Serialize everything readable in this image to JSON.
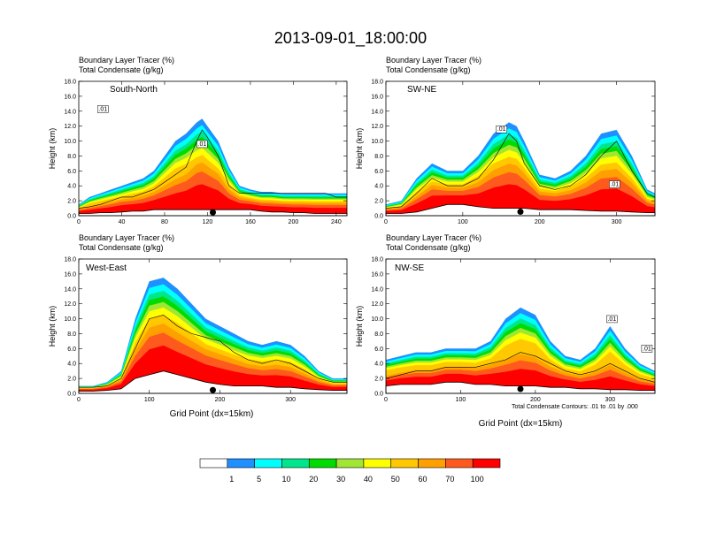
{
  "title": "2013-09-01_18:00:00",
  "panel_header": {
    "line1": "Boundary Layer Tracer    (%)",
    "line2": "Total Condensate    (g/kg)"
  },
  "footnote": "Total Condensate Contours: .01 to .01 by .000",
  "x_axis_title": "Grid Point (dx=15km)",
  "colors": {
    "bins": [
      "#ffffff",
      "#1e90ff",
      "#00ffff",
      "#00e68c",
      "#00dc00",
      "#a0e632",
      "#ffff00",
      "#ffc800",
      "#ffa000",
      "#ff5a1e",
      "#ff0000"
    ]
  },
  "colorbar_labels": [
    "1",
    "5",
    "10",
    "20",
    "30",
    "40",
    "50",
    "60",
    "70",
    "100"
  ],
  "chart_data": [
    {
      "type": "heatmap",
      "name": "South-North",
      "xlabel": "",
      "ylabel": "Height (km)",
      "xlim": [
        0,
        250
      ],
      "ylim": [
        0,
        18
      ],
      "x_ticks": [
        "0",
        "40",
        "80",
        "120",
        "160",
        "200",
        "240"
      ],
      "y_ticks": [
        "0.0",
        "2.0",
        "4.0",
        "6.0",
        "8.0",
        "10.0",
        "12.0",
        "14.0",
        "16.0",
        "18.0"
      ],
      "contour_labels": [
        ".01",
        ".01"
      ],
      "profile": {
        "x": [
          0,
          10,
          20,
          30,
          40,
          50,
          60,
          70,
          80,
          90,
          100,
          110,
          115,
          120,
          130,
          140,
          150,
          160,
          170,
          180,
          190,
          200,
          210,
          220,
          230,
          240,
          250
        ],
        "pbl_top": [
          1.0,
          1.2,
          1.5,
          2.0,
          2.5,
          2.5,
          3.0,
          3.5,
          4.5,
          5.5,
          6.5,
          10.0,
          11.5,
          10.5,
          8.0,
          4.0,
          3.0,
          3.0,
          3.0,
          3.0,
          3.0,
          3.0,
          3.0,
          3.0,
          3.0,
          2.5,
          2.5
        ],
        "cloud_top": [
          1.5,
          2.5,
          3.0,
          3.5,
          4.0,
          4.5,
          5.0,
          6.0,
          8.0,
          10.0,
          11.0,
          12.5,
          13.0,
          12.0,
          10.0,
          6.5,
          4.0,
          3.5,
          3.2,
          3.2,
          3.0,
          3.0,
          3.0,
          3.0,
          3.0,
          3.0,
          3.0
        ],
        "terrain": [
          0.3,
          0.3,
          0.4,
          0.4,
          0.5,
          0.6,
          0.6,
          0.8,
          0.8,
          0.8,
          0.8,
          0.8,
          0.8,
          0.8,
          0.8,
          0.8,
          0.8,
          0.8,
          0.6,
          0.5,
          0.5,
          0.4,
          0.4,
          0.3,
          0.3,
          0.3,
          0.3
        ]
      }
    },
    {
      "type": "heatmap",
      "name": "SW-NE",
      "xlabel": "",
      "ylabel": "Height (km)",
      "xlim": [
        0,
        350
      ],
      "ylim": [
        0,
        18
      ],
      "x_ticks": [
        "0",
        "100",
        "200",
        "300"
      ],
      "y_ticks": [
        "0.0",
        "2.0",
        "4.0",
        "6.0",
        "8.0",
        "10.0",
        "12.0",
        "14.0",
        "16.0",
        "18.0"
      ],
      "contour_labels": [
        ".01",
        ".01"
      ],
      "profile": {
        "x": [
          0,
          20,
          40,
          60,
          80,
          100,
          120,
          140,
          160,
          170,
          180,
          200,
          220,
          240,
          260,
          280,
          300,
          320,
          340,
          350
        ],
        "pbl_top": [
          1.0,
          1.2,
          3.0,
          5.0,
          4.0,
          4.0,
          5.0,
          7.5,
          11.0,
          10.0,
          7.0,
          4.0,
          3.5,
          4.0,
          5.5,
          8.0,
          10.0,
          6.0,
          3.0,
          2.5
        ],
        "cloud_top": [
          1.5,
          2.0,
          5.0,
          7.0,
          6.0,
          6.0,
          8.0,
          11.0,
          12.5,
          12.0,
          10.0,
          5.5,
          5.0,
          6.0,
          8.0,
          11.0,
          11.5,
          8.0,
          3.5,
          3.0
        ],
        "terrain": [
          0.3,
          0.3,
          0.5,
          1.0,
          1.5,
          1.5,
          1.2,
          1.0,
          1.0,
          1.0,
          1.0,
          0.8,
          0.8,
          0.8,
          0.7,
          0.6,
          0.6,
          0.5,
          0.4,
          0.4
        ]
      }
    },
    {
      "type": "heatmap",
      "name": "West-East",
      "xlabel": "Grid Point (dx=15km)",
      "ylabel": "Height (km)",
      "xlim": [
        0,
        380
      ],
      "ylim": [
        0,
        18
      ],
      "x_ticks": [
        "0",
        "100",
        "200",
        "300"
      ],
      "y_ticks": [
        "0.0",
        "2.0",
        "4.0",
        "6.0",
        "8.0",
        "10.0",
        "12.0",
        "14.0",
        "16.0",
        "18.0"
      ],
      "contour_labels": [],
      "profile": {
        "x": [
          0,
          20,
          40,
          60,
          80,
          100,
          120,
          140,
          160,
          180,
          200,
          220,
          240,
          260,
          280,
          300,
          320,
          340,
          360,
          380
        ],
        "pbl_top": [
          0.8,
          0.8,
          1.0,
          2.0,
          6.0,
          10.0,
          10.5,
          9.0,
          8.0,
          7.5,
          7.0,
          5.5,
          4.5,
          4.0,
          4.5,
          4.0,
          3.0,
          2.0,
          1.5,
          1.5
        ],
        "cloud_top": [
          1.0,
          1.0,
          1.5,
          3.0,
          10.0,
          15.0,
          15.5,
          14.0,
          12.0,
          10.0,
          9.0,
          8.0,
          7.0,
          6.5,
          7.0,
          6.5,
          5.0,
          3.0,
          2.0,
          2.0
        ],
        "terrain": [
          0.3,
          0.3,
          0.4,
          0.6,
          2.0,
          2.5,
          3.0,
          2.5,
          2.0,
          1.5,
          1.2,
          1.0,
          1.0,
          1.0,
          0.8,
          0.8,
          0.6,
          0.5,
          0.4,
          0.4
        ]
      }
    },
    {
      "type": "heatmap",
      "name": "NW-SE",
      "xlabel": "Grid Point (dx=15km)",
      "ylabel": "Height (km)",
      "xlim": [
        0,
        360
      ],
      "ylim": [
        0,
        18
      ],
      "x_ticks": [
        "0",
        "100",
        "200",
        "300"
      ],
      "y_ticks": [
        "0.0",
        "2.0",
        "4.0",
        "6.0",
        "8.0",
        "10.0",
        "12.0",
        "14.0",
        "16.0",
        "18.0"
      ],
      "contour_labels": [
        ".01",
        ".01"
      ],
      "profile": {
        "x": [
          0,
          20,
          40,
          60,
          80,
          100,
          120,
          140,
          160,
          180,
          200,
          220,
          240,
          260,
          280,
          300,
          320,
          340,
          360
        ],
        "pbl_top": [
          2.0,
          2.5,
          3.0,
          3.0,
          3.5,
          3.5,
          3.5,
          4.0,
          4.5,
          5.5,
          5.0,
          4.0,
          3.0,
          2.5,
          3.0,
          4.0,
          3.0,
          2.0,
          1.5
        ],
        "cloud_top": [
          4.5,
          5.0,
          5.5,
          5.5,
          6.0,
          6.0,
          6.0,
          7.0,
          10.0,
          11.5,
          10.5,
          7.0,
          5.0,
          4.5,
          6.0,
          9.0,
          6.0,
          4.0,
          3.0
        ],
        "terrain": [
          1.0,
          1.2,
          1.2,
          1.2,
          1.5,
          1.5,
          1.2,
          1.2,
          1.0,
          1.0,
          1.0,
          0.8,
          0.8,
          0.6,
          0.6,
          0.5,
          0.5,
          0.4,
          0.4
        ]
      }
    }
  ]
}
